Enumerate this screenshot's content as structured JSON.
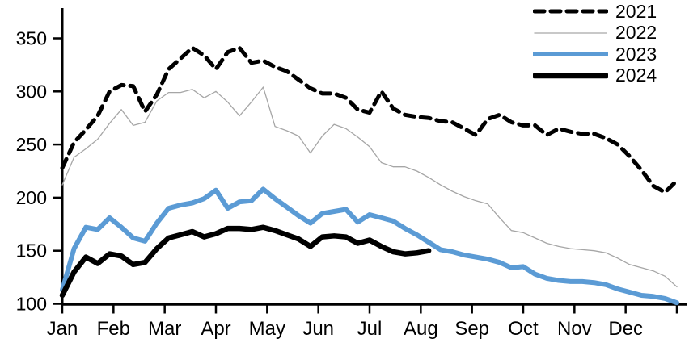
{
  "chart_data": {
    "type": "line",
    "title": "",
    "frequency_hint": "weekly points, Jan through Dec",
    "xlabel": "",
    "ylabel": "",
    "x_axis": {
      "tick_labels": [
        "Jan",
        "Feb",
        "Mar",
        "Apr",
        "May",
        "Jun",
        "Jul",
        "Aug",
        "Sep",
        "Oct",
        "Nov",
        "Dec"
      ],
      "extra_end_tick": true
    },
    "y_axis": {
      "ticks": [
        350,
        300,
        250,
        200,
        150,
        100
      ],
      "range": [
        100,
        350
      ],
      "grid": false
    },
    "legend_position": "top-right",
    "axis_color": "#000000",
    "series": [
      {
        "name": "2021",
        "color": "#000000",
        "style": "dashed",
        "width": 5,
        "values": [
          228,
          252,
          264,
          277,
          300,
          306,
          305,
          281,
          297,
          321,
          331,
          341,
          334,
          321,
          337,
          341,
          327,
          329,
          323,
          319,
          311,
          303,
          298,
          298,
          294,
          283,
          280,
          300,
          284,
          278,
          276,
          275,
          272,
          271,
          265,
          259,
          274,
          278,
          271,
          268,
          268,
          259,
          265,
          262,
          260,
          260,
          256,
          250,
          239,
          226,
          211,
          205,
          216
        ]
      },
      {
        "name": "2022",
        "color": "#A6A6A6",
        "style": "solid",
        "width": 1.3,
        "values": [
          212,
          238,
          246,
          255,
          270,
          283,
          268,
          271,
          291,
          299,
          299,
          302,
          294,
          300,
          290,
          277,
          290,
          304,
          267,
          263,
          258,
          242,
          258,
          269,
          265,
          257,
          248,
          233,
          229,
          229,
          225,
          219,
          212,
          206,
          201,
          197,
          194,
          181,
          169,
          167,
          162,
          157,
          154,
          152,
          151,
          150,
          148,
          143,
          137,
          134,
          131,
          126,
          116
        ]
      },
      {
        "name": "2023",
        "color": "#5B9BD5",
        "style": "solid",
        "width": 6,
        "values": [
          113,
          152,
          172,
          170,
          181,
          172,
          162,
          159,
          176,
          190,
          193,
          195,
          199,
          207,
          190,
          196,
          197,
          208,
          199,
          191,
          183,
          176,
          185,
          187,
          189,
          177,
          184,
          181,
          178,
          171,
          165,
          158,
          151,
          149,
          146,
          144,
          142,
          139,
          134,
          135,
          128,
          124,
          122,
          121,
          121,
          120,
          118,
          114,
          111,
          108,
          107,
          105,
          101
        ]
      },
      {
        "name": "2024",
        "color": "#000000",
        "style": "solid",
        "width": 6.5,
        "values": [
          108,
          130,
          144,
          138,
          147,
          145,
          137,
          139,
          152,
          162,
          165,
          168,
          163,
          166,
          171,
          171,
          170,
          172,
          169,
          165,
          161,
          154,
          163,
          164,
          163,
          157,
          160,
          154,
          149,
          147,
          148,
          150
        ]
      }
    ]
  }
}
